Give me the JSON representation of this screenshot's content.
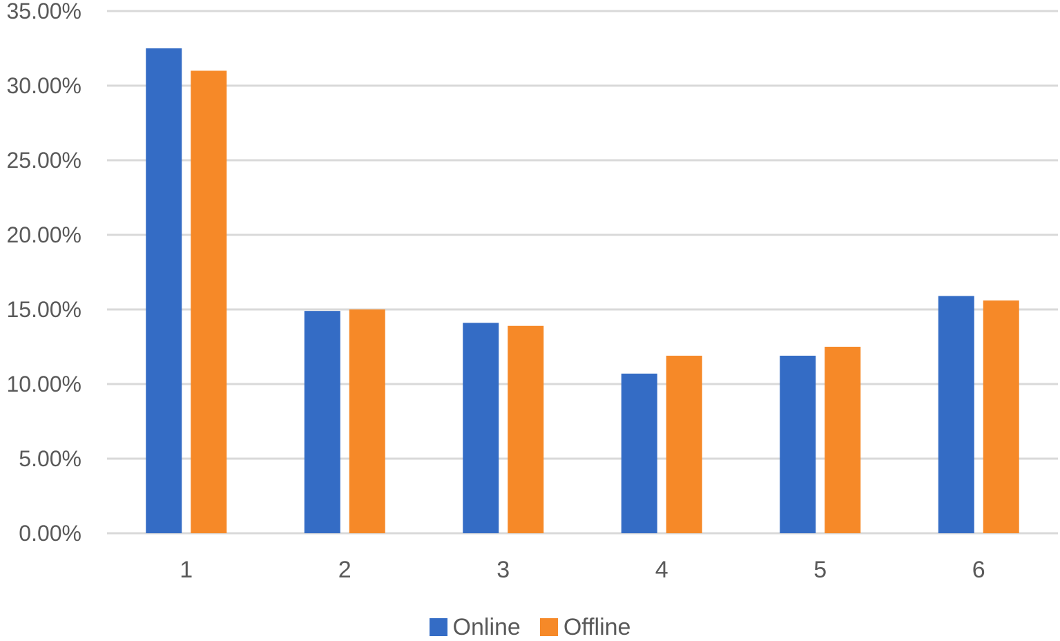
{
  "chart_data": {
    "type": "bar",
    "categories": [
      "1",
      "2",
      "3",
      "4",
      "5",
      "6"
    ],
    "series": [
      {
        "name": "Online",
        "color": "#346CC5",
        "values": [
          32.5,
          14.9,
          14.1,
          10.7,
          11.9,
          15.9
        ]
      },
      {
        "name": "Offline",
        "color": "#F68928",
        "values": [
          31.0,
          15.0,
          13.9,
          11.9,
          12.5,
          15.6
        ]
      }
    ],
    "ylim": [
      0,
      35
    ],
    "yticks": [
      0,
      5,
      10,
      15,
      20,
      25,
      30,
      35
    ],
    "ytick_labels": [
      "0.00%",
      "5.00%",
      "10.00%",
      "15.00%",
      "20.00%",
      "25.00%",
      "30.00%",
      "35.00%"
    ],
    "grid": true,
    "legend_position": "bottom",
    "title": "",
    "xlabel": "",
    "ylabel": ""
  }
}
